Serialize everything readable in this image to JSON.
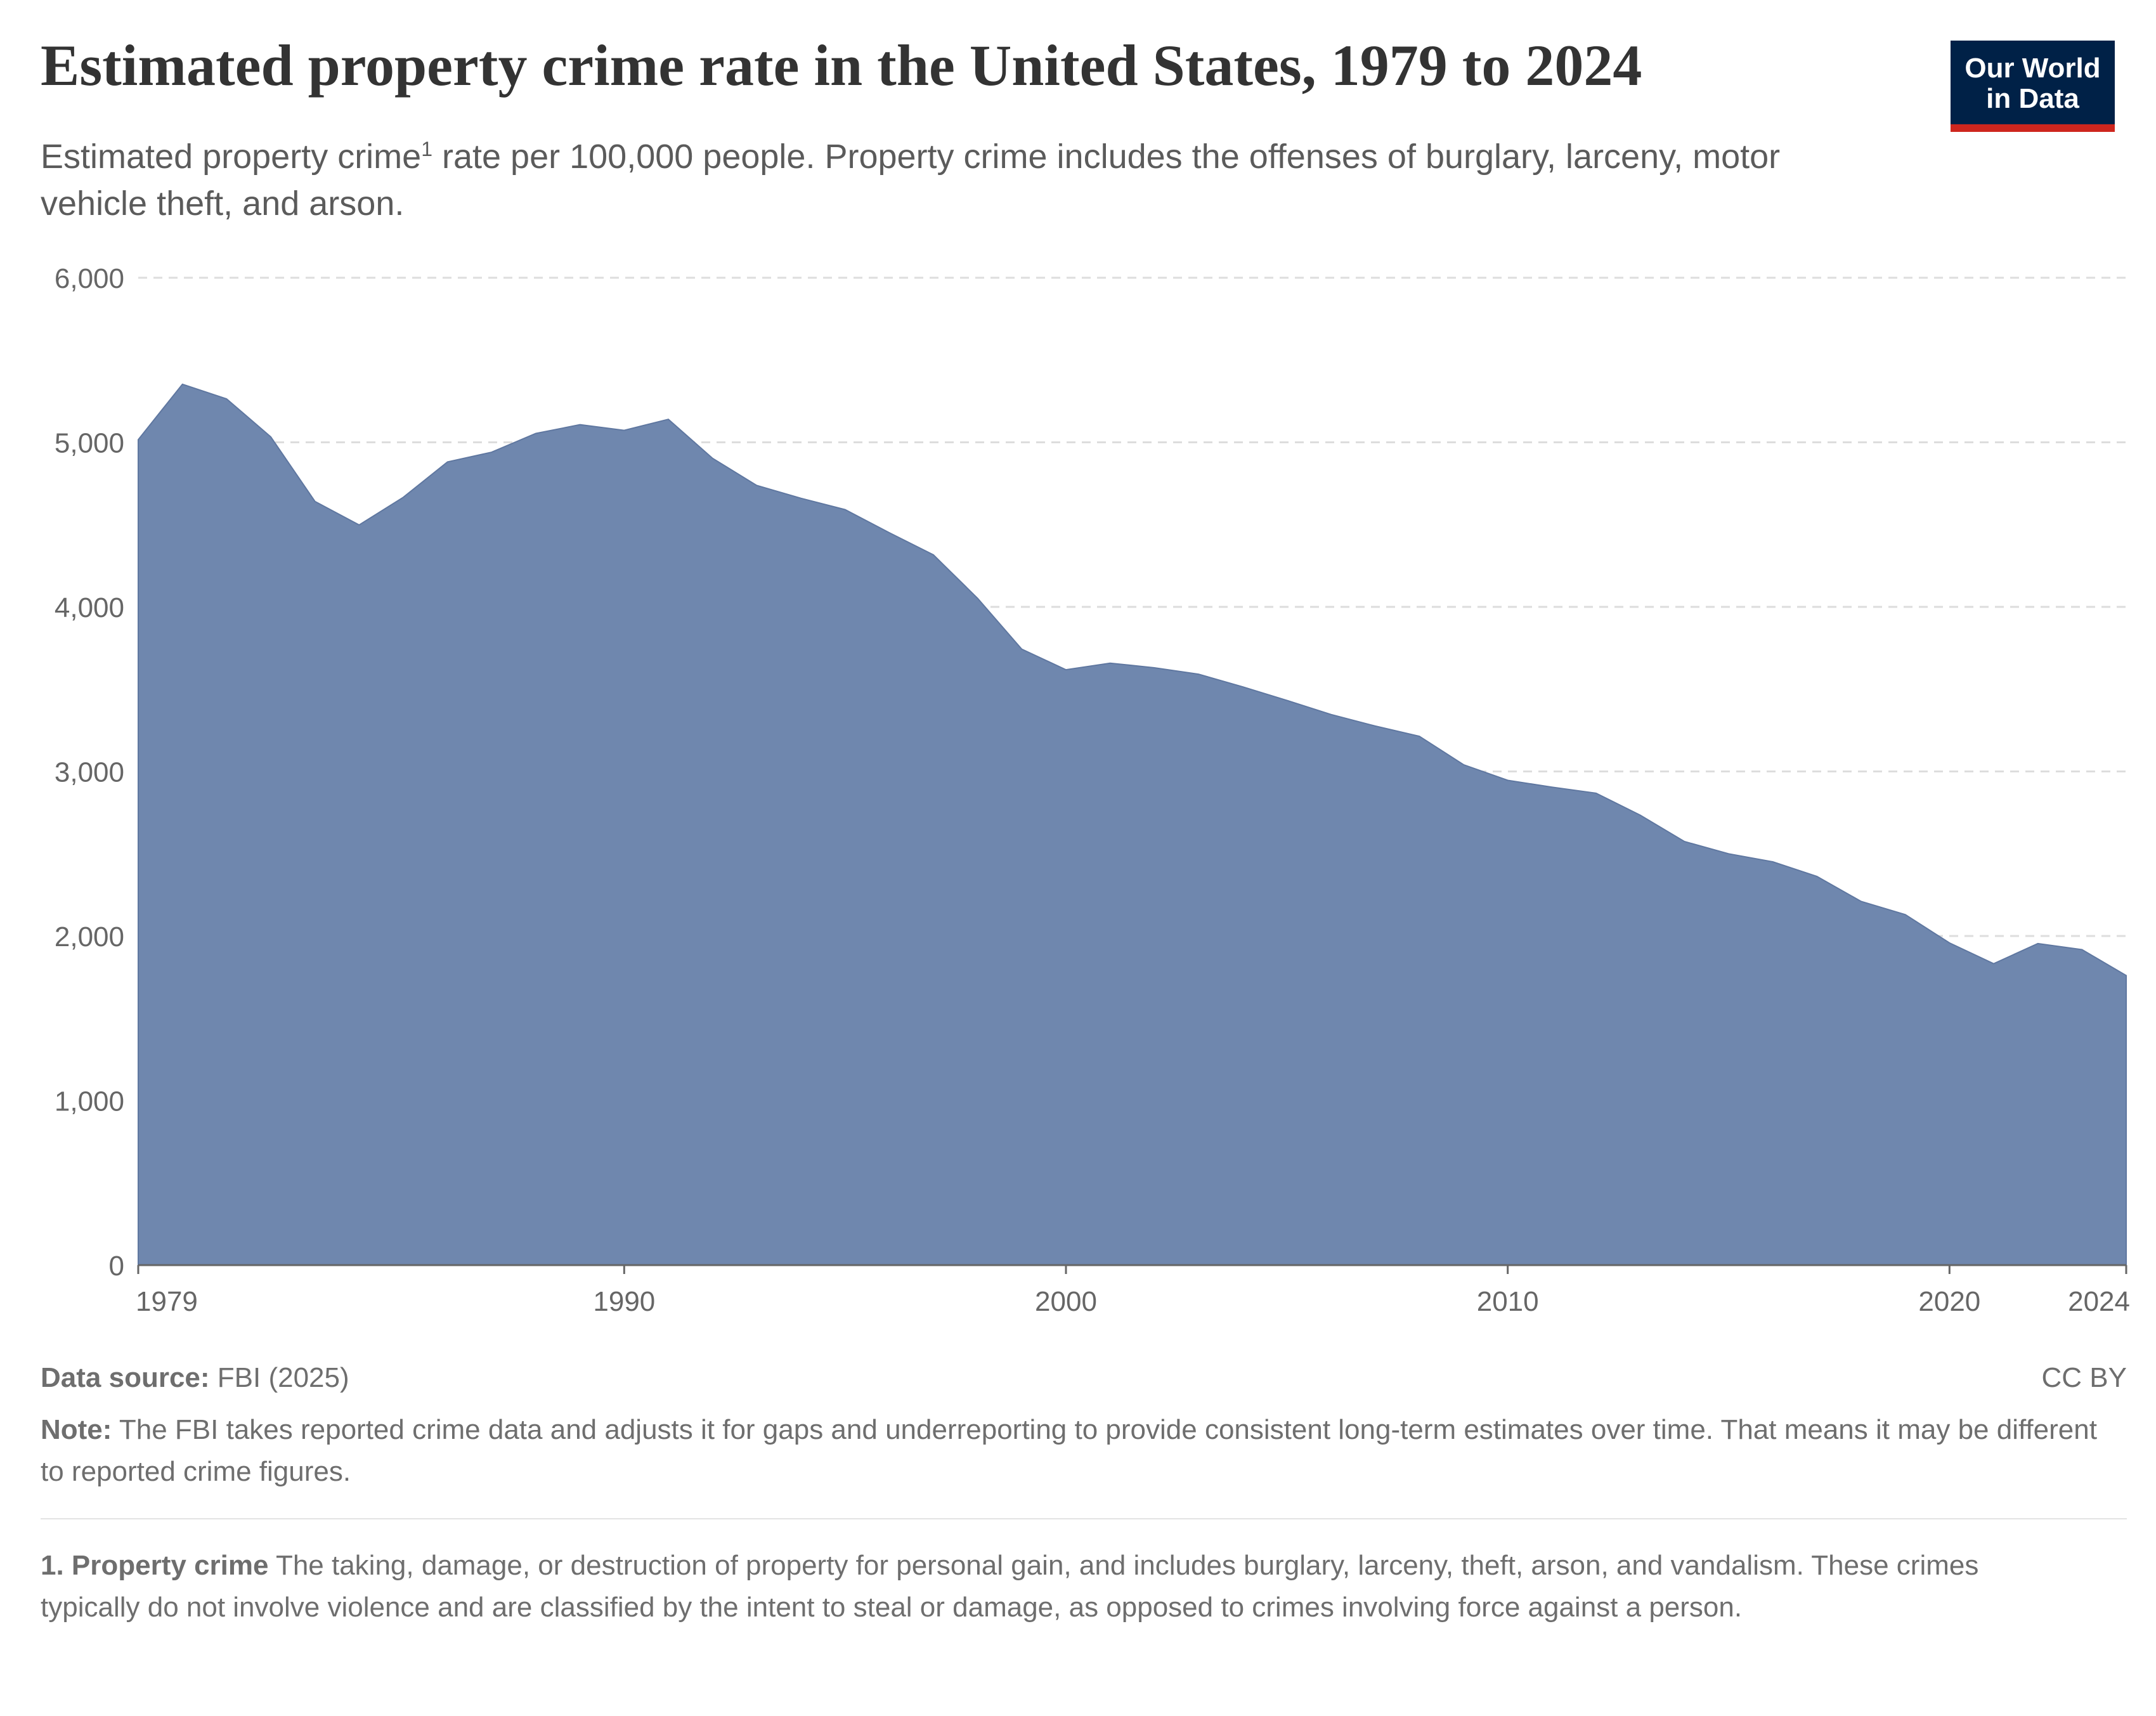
{
  "header": {
    "title": "Estimated property crime rate in the United States, 1979 to 2024",
    "subtitle_part1": "Estimated property crime",
    "subtitle_sup": "1",
    "subtitle_part2": " rate per 100,000 people. Property crime includes the offenses of burglary, larceny, motor vehicle theft, and arson.",
    "logo_line1": "Our World",
    "logo_line2": "in Data"
  },
  "chart_data": {
    "type": "area",
    "title": "Estimated property crime rate in the United States, 1979 to 2024",
    "xlabel": "",
    "ylabel": "",
    "ylim": [
      0,
      6000
    ],
    "xlim": [
      1979,
      2024
    ],
    "grid": "horizontal dashed",
    "fill_color": "#6f87ae",
    "y_ticks": [
      0,
      1000,
      2000,
      3000,
      4000,
      5000,
      6000
    ],
    "y_tick_labels": [
      "0",
      "1,000",
      "2,000",
      "3,000",
      "4,000",
      "5,000",
      "6,000"
    ],
    "x_ticks": [
      1979,
      1990,
      2000,
      2010,
      2020,
      2024
    ],
    "x_tick_labels": [
      "1979",
      "1990",
      "2000",
      "2010",
      "2020",
      "2024"
    ],
    "x": [
      1979,
      1980,
      1981,
      1982,
      1983,
      1984,
      1985,
      1986,
      1987,
      1988,
      1989,
      1990,
      1991,
      1992,
      1993,
      1994,
      1995,
      1996,
      1997,
      1998,
      1999,
      2000,
      2001,
      2002,
      2003,
      2004,
      2005,
      2006,
      2007,
      2008,
      2009,
      2010,
      2011,
      2012,
      2013,
      2014,
      2015,
      2016,
      2017,
      2018,
      2019,
      2020,
      2021,
      2022,
      2023,
      2024
    ],
    "values": [
      5016,
      5353,
      5264,
      5033,
      4641,
      4498,
      4666,
      4881,
      4940,
      5054,
      5107,
      5073,
      5140,
      4903,
      4738,
      4660,
      4591,
      4451,
      4316,
      4052,
      3743,
      3618,
      3658,
      3630,
      3591,
      3514,
      3432,
      3346,
      3276,
      3214,
      3041,
      2946,
      2905,
      2868,
      2734,
      2574,
      2500,
      2451,
      2362,
      2210,
      2130,
      1958,
      1832,
      1954,
      1917,
      1760
    ]
  },
  "footer": {
    "source_label": "Data source:",
    "source_value": "FBI (2025)",
    "license": "CC BY",
    "note_label": "Note:",
    "note_text": "The FBI takes reported crime data and adjusts it for gaps and underreporting to provide consistent long-term estimates over time. That means it may be different to reported crime figures.",
    "footnote_label": "1. Property crime",
    "footnote_text": "The taking, damage, or destruction of property for personal gain, and includes burglary, larceny, theft, arson, and vandalism. These crimes typically do not involve violence and are classified by the intent to steal or damage, as opposed to crimes involving force against a person."
  }
}
